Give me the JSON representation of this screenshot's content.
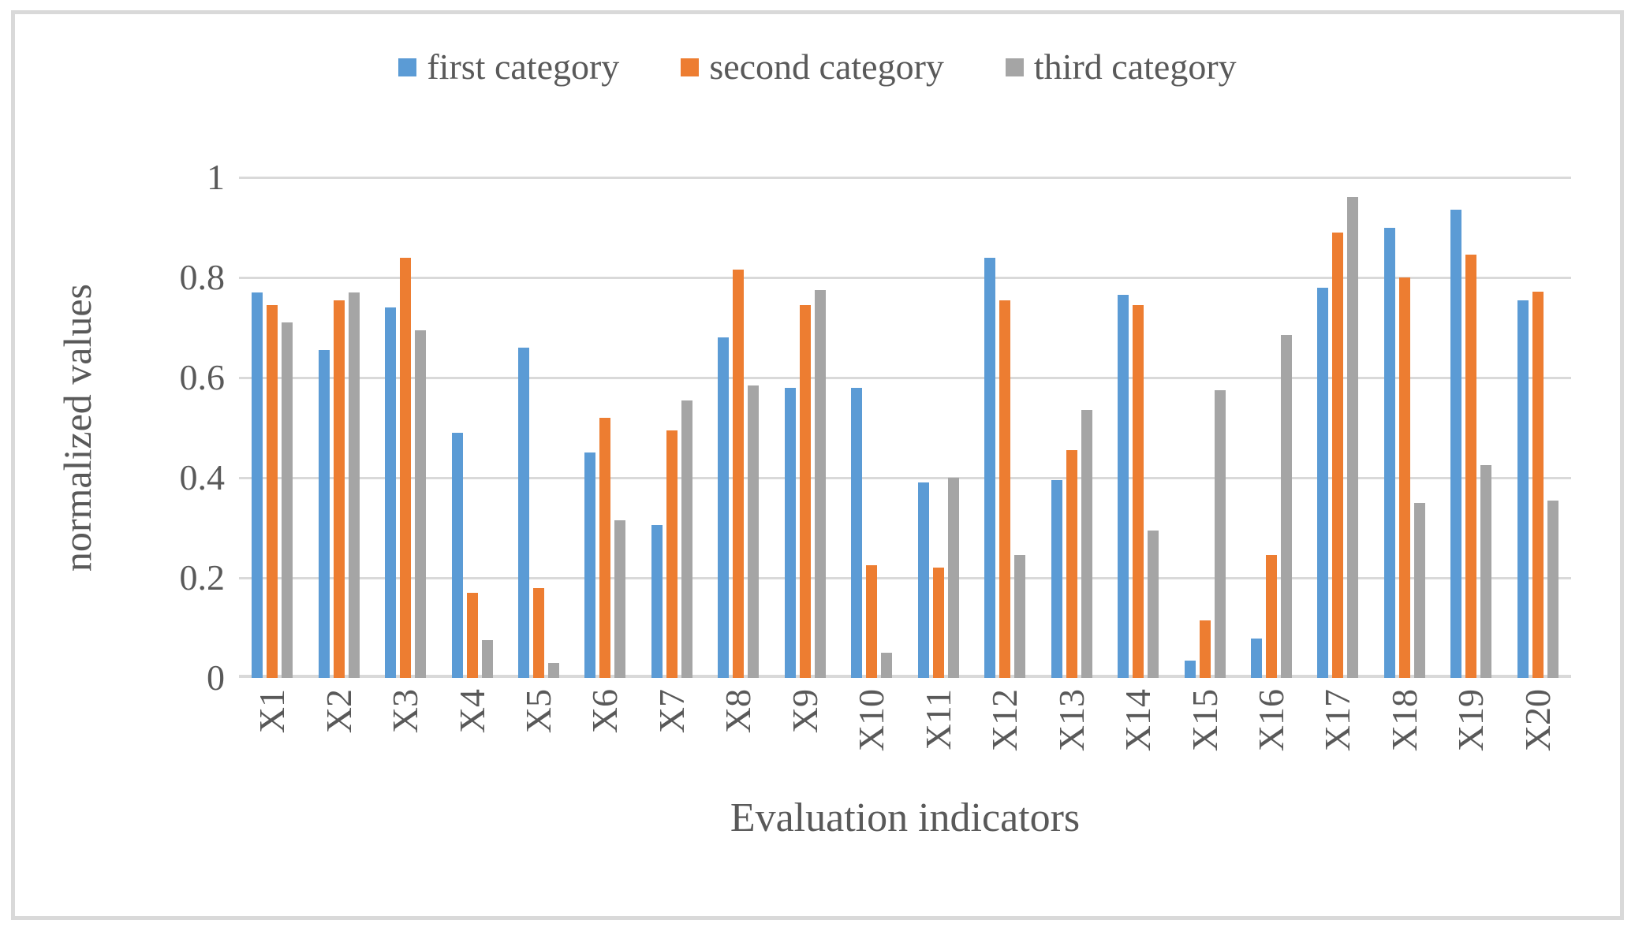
{
  "frame_color": "#D9D9D9",
  "text_color": "#595959",
  "chart_data": {
    "type": "bar",
    "title": "",
    "xlabel": "Evaluation indicators",
    "ylabel": "normalized values",
    "categories": [
      "X1",
      "X2",
      "X3",
      "X4",
      "X5",
      "X6",
      "X7",
      "X8",
      "X9",
      "X10",
      "X11",
      "X12",
      "X13",
      "X14",
      "X15",
      "X16",
      "X17",
      "X18",
      "X19",
      "X20"
    ],
    "series": [
      {
        "name": "first category",
        "color": "#5B9BD5",
        "values": [
          0.77,
          0.655,
          0.74,
          0.49,
          0.66,
          0.45,
          0.305,
          0.68,
          0.58,
          0.58,
          0.39,
          0.84,
          0.395,
          0.765,
          0.035,
          0.078,
          0.78,
          0.9,
          0.935,
          0.755
        ]
      },
      {
        "name": "second category",
        "color": "#ED7D31",
        "values": [
          0.745,
          0.755,
          0.84,
          0.17,
          0.18,
          0.52,
          0.495,
          0.815,
          0.745,
          0.225,
          0.22,
          0.755,
          0.455,
          0.745,
          0.115,
          0.245,
          0.89,
          0.8,
          0.845,
          0.772
        ]
      },
      {
        "name": "third category",
        "color": "#A5A5A5",
        "values": [
          0.71,
          0.77,
          0.695,
          0.075,
          0.03,
          0.315,
          0.555,
          0.585,
          0.775,
          0.05,
          0.4,
          0.245,
          0.535,
          0.295,
          0.575,
          0.685,
          0.96,
          0.35,
          0.425,
          0.355
        ]
      }
    ],
    "ylim": [
      0,
      1
    ],
    "yticks": [
      0,
      0.2,
      0.4,
      0.6,
      0.8,
      1
    ],
    "ytick_labels": [
      "0",
      "0.2",
      "0.4",
      "0.6",
      "0.8",
      "1"
    ],
    "grid": true,
    "gridline_color": "#D9D9D9",
    "legend_position": "top"
  }
}
